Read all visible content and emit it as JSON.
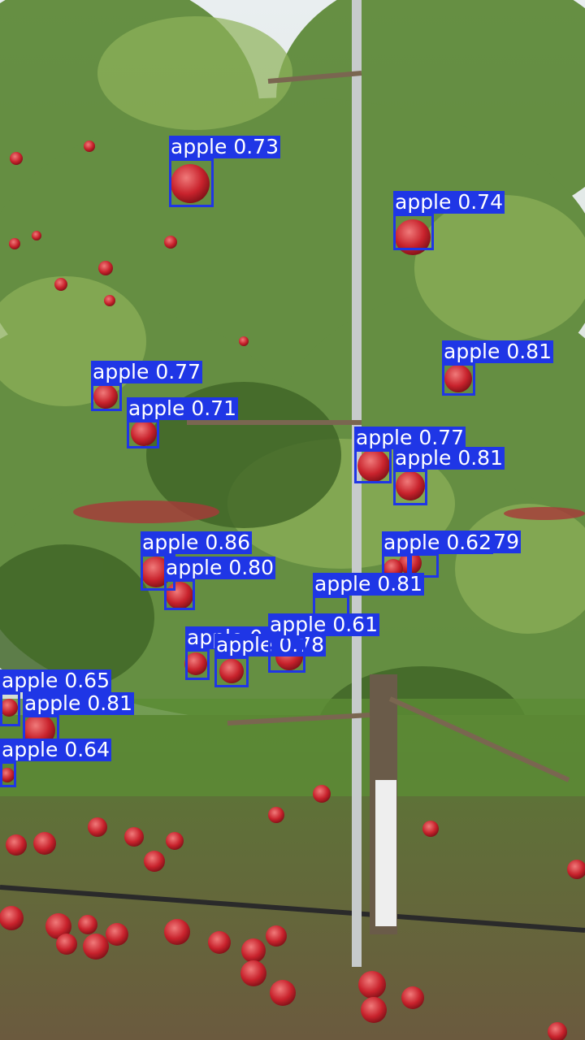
{
  "image": {
    "description_free": true
  },
  "detections": [
    {
      "label": "apple",
      "score": "0.73"
    },
    {
      "label": "apple",
      "score": "0.74"
    },
    {
      "label": "apple",
      "score": "0.81"
    },
    {
      "label": "apple",
      "score": "0.77"
    },
    {
      "label": "apple",
      "score": "0.71"
    },
    {
      "label": "apple",
      "score": "0.77"
    },
    {
      "label": "apple",
      "score": "0.81"
    },
    {
      "label": "apple",
      "score": "0.86"
    },
    {
      "label": "apple",
      "score": "0.80"
    },
    {
      "label": "apple",
      "score": "0.79"
    },
    {
      "label": "apple",
      "score": "0.62"
    },
    {
      "label": "apple",
      "score": "0.81"
    },
    {
      "label": "apple",
      "score": "0.76"
    },
    {
      "label": "apple",
      "score": "0.78"
    },
    {
      "label": "apple",
      "score": "0.61"
    },
    {
      "label": "apple",
      "score": "0.65"
    },
    {
      "label": "apple",
      "score": "0.81"
    },
    {
      "label": "apple",
      "score": "0.64"
    }
  ],
  "colors": {
    "box": "#1f36e6",
    "label_text": "#ffffff"
  }
}
